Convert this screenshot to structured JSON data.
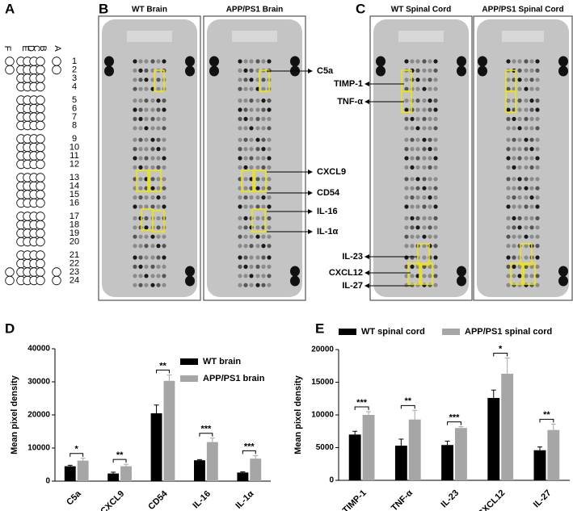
{
  "panel_letters": [
    "A",
    "B",
    "C",
    "D",
    "E"
  ],
  "panel_a": {
    "columns": [
      "F",
      "E",
      "D",
      "C",
      "B",
      "A"
    ],
    "rows": [
      "1",
      "2",
      "3",
      "4",
      "5",
      "6",
      "7",
      "8",
      "9",
      "10",
      "11",
      "12",
      "13",
      "14",
      "15",
      "16",
      "17",
      "18",
      "19",
      "20",
      "21",
      "22",
      "23",
      "24"
    ]
  },
  "panel_b": {
    "images": [
      "WT Brain",
      "APP/PS1 Brain"
    ],
    "labels": [
      "C5a",
      "CXCL9",
      "CD54",
      "IL-16",
      "IL-1α"
    ]
  },
  "panel_c": {
    "images": [
      "WT Spinal Cord",
      "APP/PS1 Spinal Cord"
    ],
    "labels": [
      "TIMP-1",
      "TNF-α",
      "IL-23",
      "CXCL12",
      "IL-27"
    ]
  },
  "chart_data": [
    {
      "type": "bar",
      "ylabel": "Mean pixel density",
      "categories": [
        "C5a",
        "CXCL9",
        "CD54",
        "IL-16",
        "IL-1α"
      ],
      "series": [
        {
          "name": "WT brain",
          "color": "#000000",
          "values": [
            4500,
            2300,
            20500,
            6300,
            2600
          ],
          "errors": [
            300,
            400,
            2500,
            200,
            200
          ]
        },
        {
          "name": "APP/PS1 brain",
          "color": "#a6a6a6",
          "values": [
            6200,
            4500,
            30300,
            11800,
            6800
          ],
          "errors": [
            700,
            600,
            1800,
            1200,
            900
          ]
        }
      ],
      "significance": [
        "*",
        "**",
        "**",
        "***",
        "***"
      ],
      "ylim": [
        0,
        40000
      ],
      "yticks": [
        0,
        10000,
        20000,
        30000,
        40000
      ],
      "legend": "upper right"
    },
    {
      "type": "bar",
      "ylabel": "Mean pixel density",
      "categories": [
        "TIMP-1",
        "TNF-α",
        "IL-23",
        "CXCL12",
        "IL-27"
      ],
      "series": [
        {
          "name": "WT spinal cord",
          "color": "#000000",
          "values": [
            7000,
            5300,
            5400,
            12600,
            4600
          ],
          "errors": [
            500,
            1000,
            600,
            1200,
            500
          ]
        },
        {
          "name": "APP/PS1 spinal cord",
          "color": "#a6a6a6",
          "values": [
            10000,
            9300,
            8000,
            16300,
            7700
          ],
          "errors": [
            500,
            1400,
            200,
            2400,
            900
          ]
        }
      ],
      "significance": [
        "***",
        "**",
        "***",
        "*",
        "**"
      ],
      "ylim": [
        0,
        20000
      ],
      "yticks": [
        0,
        5000,
        10000,
        15000,
        20000
      ],
      "legend": "top"
    }
  ]
}
